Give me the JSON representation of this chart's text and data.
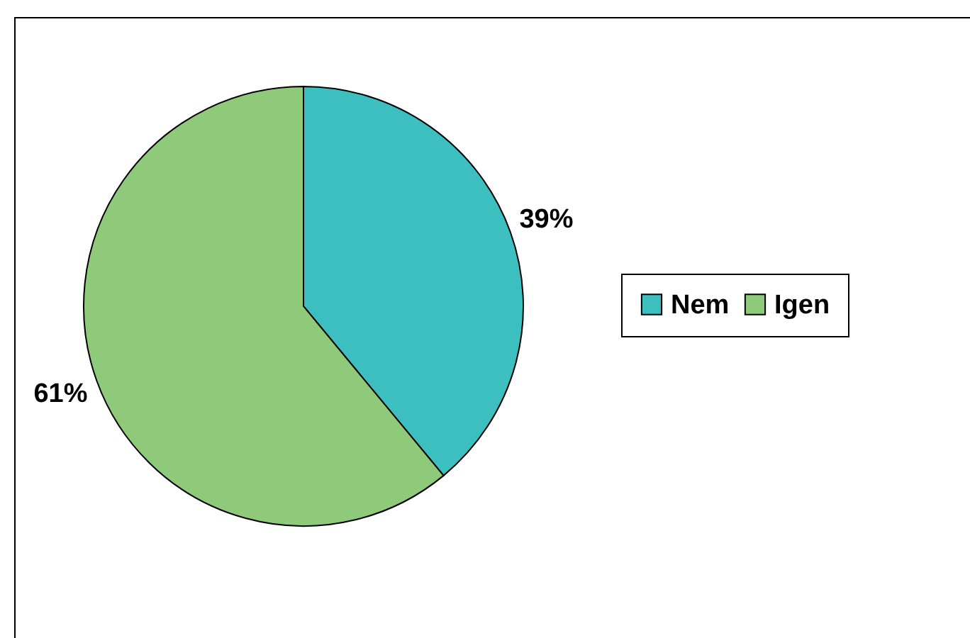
{
  "chart_data": {
    "type": "pie",
    "categories": [
      "Nem",
      "Igen"
    ],
    "values": [
      39,
      61
    ],
    "colors": [
      "#3dbfbf",
      "#8fca7a"
    ],
    "value_labels": [
      "39%",
      "61%"
    ],
    "legend": "right"
  }
}
